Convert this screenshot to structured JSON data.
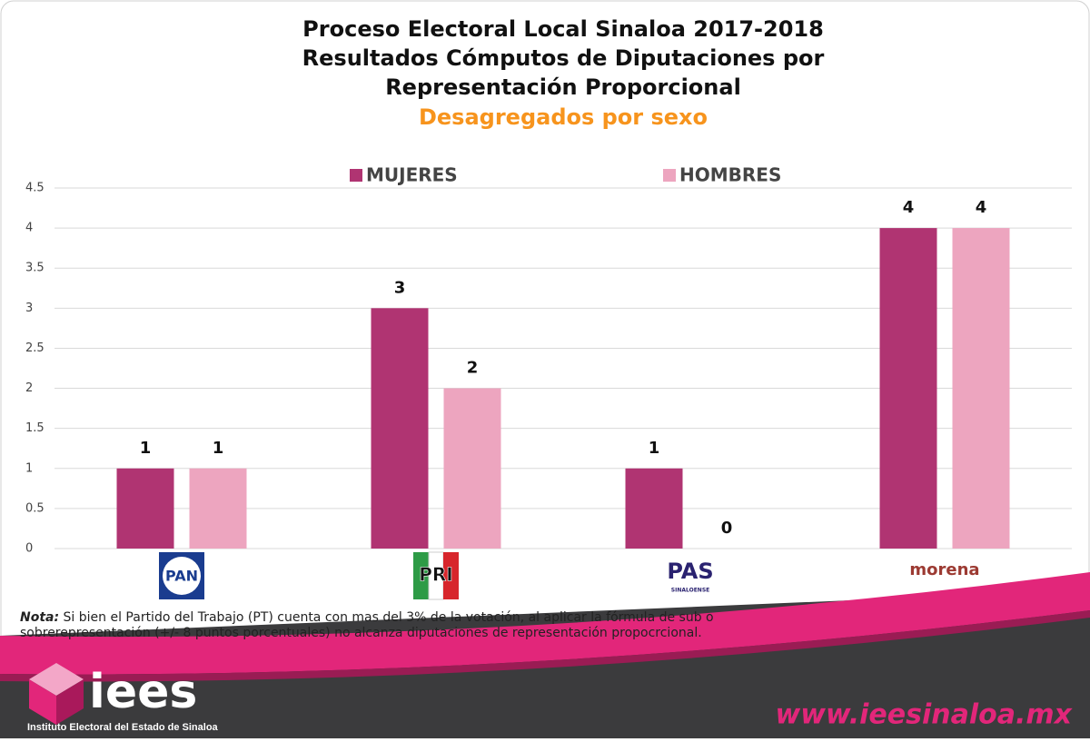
{
  "chart_data": {
    "type": "bar",
    "title": [
      "Proceso Electoral Local Sinaloa 2017-2018",
      "Resultados Cómputos de Diputaciones por",
      "Representación Proporcional"
    ],
    "subtitle": "Desagregados por sexo",
    "categories": [
      "PAN",
      "PRI",
      "PAS",
      "morena"
    ],
    "series": [
      {
        "name": "MUJERES",
        "color": "#b03472",
        "values": [
          1,
          3,
          1,
          4
        ]
      },
      {
        "name": "HOMBRES",
        "color": "#eda5bf",
        "values": [
          1,
          2,
          0,
          4
        ]
      }
    ],
    "ylim": [
      0,
      4.5
    ],
    "yticks": [
      0,
      0.5,
      1,
      1.5,
      2,
      2.5,
      3,
      3.5,
      4,
      4.5
    ],
    "grid": true,
    "legend": "top"
  },
  "note": {
    "label": "Nota:",
    "text": "Si bien el Partido del Trabajo (PT) cuenta con mas del 3% de la votación, al aplicar la fórmula de sub o",
    "text2": "sobrerepresentación (+/- 8 puntos porcentuales) no alcanza diputaciones de representación propocrcional."
  },
  "footer": {
    "logo": "iees",
    "institute": "Instituto Electoral del Estado de Sinaloa",
    "url": "www.ieesinaloa.mx",
    "pas_sub": "SINALOENSE"
  }
}
